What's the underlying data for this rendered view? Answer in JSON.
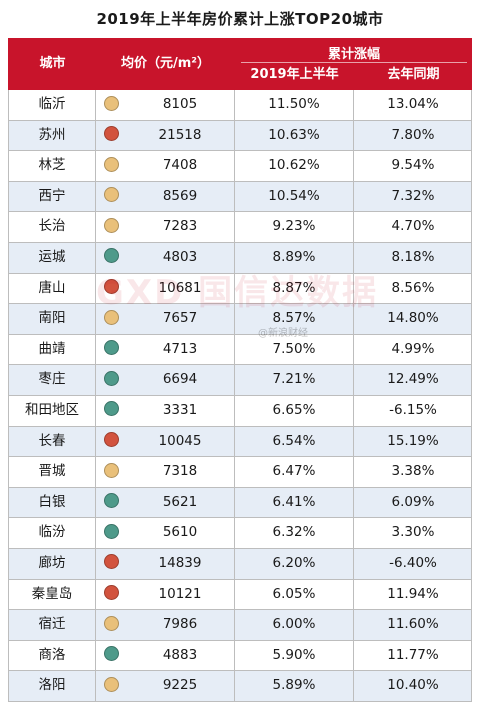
{
  "title": "2019年上半年房价累计上涨TOP20城市",
  "header": {
    "city": "城市",
    "price": "均价（元/m²）",
    "group": "累计涨幅",
    "h1": "2019年上半年",
    "h2": "去年同期"
  },
  "colors": {
    "header_bg": "#c8142b",
    "row_alt": "#e6edf6",
    "dot_yellow": "#e9c07a",
    "dot_red": "#d2533e",
    "dot_green": "#4e9a8a"
  },
  "watermark": {
    "logo": "GXD 国信达数据",
    "text": "@新浪财经"
  },
  "rows": [
    {
      "city": "临沂",
      "dot": "yellow",
      "price": "8105",
      "h1": "11.50%",
      "h2": "13.04%"
    },
    {
      "city": "苏州",
      "dot": "red",
      "price": "21518",
      "h1": "10.63%",
      "h2": "7.80%"
    },
    {
      "city": "林芝",
      "dot": "yellow",
      "price": "7408",
      "h1": "10.62%",
      "h2": "9.54%"
    },
    {
      "city": "西宁",
      "dot": "yellow",
      "price": "8569",
      "h1": "10.54%",
      "h2": "7.32%"
    },
    {
      "city": "长治",
      "dot": "yellow",
      "price": "7283",
      "h1": "9.23%",
      "h2": "4.70%"
    },
    {
      "city": "运城",
      "dot": "green",
      "price": "4803",
      "h1": "8.89%",
      "h2": "8.18%"
    },
    {
      "city": "唐山",
      "dot": "red",
      "price": "10681",
      "h1": "8.87%",
      "h2": "8.56%"
    },
    {
      "city": "南阳",
      "dot": "yellow",
      "price": "7657",
      "h1": "8.57%",
      "h2": "14.80%"
    },
    {
      "city": "曲靖",
      "dot": "green",
      "price": "4713",
      "h1": "7.50%",
      "h2": "4.99%"
    },
    {
      "city": "枣庄",
      "dot": "green",
      "price": "6694",
      "h1": "7.21%",
      "h2": "12.49%"
    },
    {
      "city": "和田地区",
      "dot": "green",
      "price": "3331",
      "h1": "6.65%",
      "h2": "-6.15%"
    },
    {
      "city": "长春",
      "dot": "red",
      "price": "10045",
      "h1": "6.54%",
      "h2": "15.19%"
    },
    {
      "city": "晋城",
      "dot": "yellow",
      "price": "7318",
      "h1": "6.47%",
      "h2": "3.38%"
    },
    {
      "city": "白银",
      "dot": "green",
      "price": "5621",
      "h1": "6.41%",
      "h2": "6.09%"
    },
    {
      "city": "临汾",
      "dot": "green",
      "price": "5610",
      "h1": "6.32%",
      "h2": "3.30%"
    },
    {
      "city": "廊坊",
      "dot": "red",
      "price": "14839",
      "h1": "6.20%",
      "h2": "-6.40%"
    },
    {
      "city": "秦皇岛",
      "dot": "red",
      "price": "10121",
      "h1": "6.05%",
      "h2": "11.94%"
    },
    {
      "city": "宿迁",
      "dot": "yellow",
      "price": "7986",
      "h1": "6.00%",
      "h2": "11.60%"
    },
    {
      "city": "商洛",
      "dot": "green",
      "price": "4883",
      "h1": "5.90%",
      "h2": "11.77%"
    },
    {
      "city": "洛阳",
      "dot": "yellow",
      "price": "9225",
      "h1": "5.89%",
      "h2": "10.40%"
    }
  ]
}
